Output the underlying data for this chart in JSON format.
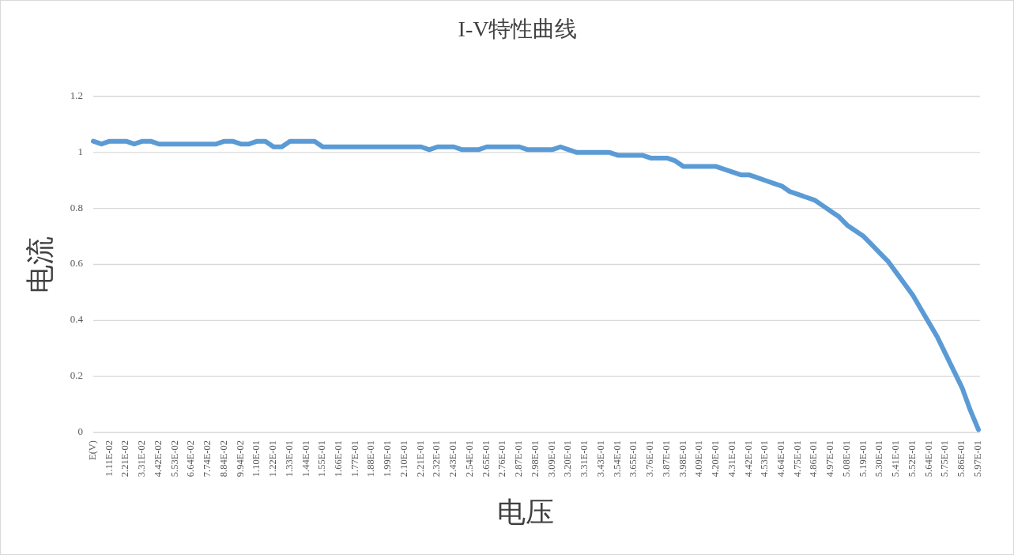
{
  "chart_data": {
    "type": "line",
    "title": "I-V特性曲线",
    "xlabel": "电压",
    "ylabel": "电流",
    "categories": [
      "E(V)",
      null,
      "1.11E-02",
      null,
      "2.21E-02",
      null,
      "3.31E-02",
      null,
      "4.42E-02",
      null,
      "5.53E-02",
      null,
      "6.64E-02",
      null,
      "7.74E-02",
      null,
      "8.84E-02",
      null,
      "9.94E-02",
      null,
      "1.10E-01",
      null,
      "1.22E-01",
      null,
      "1.33E-01",
      null,
      "1.44E-01",
      null,
      "1.55E-01",
      null,
      "1.66E-01",
      null,
      "1.77E-01",
      null,
      "1.88E-01",
      null,
      "1.99E-01",
      null,
      "2.10E-01",
      null,
      "2.21E-01",
      null,
      "2.32E-01",
      null,
      "2.43E-01",
      null,
      "2.54E-01",
      null,
      "2.65E-01",
      null,
      "2.76E-01",
      null,
      "2.87E-01",
      null,
      "2.98E-01",
      null,
      "3.09E-01",
      null,
      "3.20E-01",
      null,
      "3.31E-01",
      null,
      "3.43E-01",
      null,
      "3.54E-01",
      null,
      "3.65E-01",
      null,
      "3.76E-01",
      null,
      "3.87E-01",
      null,
      "3.98E-01",
      null,
      "4.09E-01",
      null,
      "4.20E-01",
      null,
      "4.31E-01",
      null,
      "4.42E-01",
      null,
      "4.53E-01",
      null,
      "4.64E-01",
      null,
      "4.75E-01",
      null,
      "4.86E-01",
      null,
      "4.97E-01",
      null,
      "5.08E-01",
      null,
      "5.19E-01",
      null,
      "5.30E-01",
      null,
      "5.41E-01",
      null,
      "5.52E-01",
      null,
      "5.64E-01",
      null,
      "5.75E-01",
      null,
      "5.86E-01",
      null,
      "5.97E-01"
    ],
    "values": [
      1.04,
      1.03,
      1.04,
      1.04,
      1.04,
      1.03,
      1.04,
      1.04,
      1.03,
      1.03,
      1.03,
      1.03,
      1.03,
      1.03,
      1.03,
      1.03,
      1.04,
      1.04,
      1.03,
      1.03,
      1.04,
      1.04,
      1.02,
      1.02,
      1.04,
      1.04,
      1.04,
      1.04,
      1.02,
      1.02,
      1.02,
      1.02,
      1.02,
      1.02,
      1.02,
      1.02,
      1.02,
      1.02,
      1.02,
      1.02,
      1.02,
      1.01,
      1.02,
      1.02,
      1.02,
      1.01,
      1.01,
      1.01,
      1.02,
      1.02,
      1.02,
      1.02,
      1.02,
      1.01,
      1.01,
      1.01,
      1.01,
      1.02,
      1.01,
      1.0,
      1.0,
      1.0,
      1.0,
      1.0,
      0.99,
      0.99,
      0.99,
      0.99,
      0.98,
      0.98,
      0.98,
      0.97,
      0.95,
      0.95,
      0.95,
      0.95,
      0.95,
      0.94,
      0.93,
      0.92,
      0.92,
      0.91,
      0.9,
      0.89,
      0.88,
      0.86,
      0.85,
      0.84,
      0.83,
      0.81,
      0.79,
      0.77,
      0.74,
      0.72,
      0.7,
      0.67,
      0.64,
      0.61,
      0.57,
      0.53,
      0.49,
      0.44,
      0.39,
      0.34,
      0.28,
      0.22,
      0.16,
      0.08,
      0.01
    ],
    "color": "#5b9bd5",
    "ylim": [
      0,
      1.2
    ],
    "yticks": [
      0,
      0.2,
      0.4,
      0.6,
      0.8,
      1,
      1.2
    ],
    "grid": "y"
  }
}
